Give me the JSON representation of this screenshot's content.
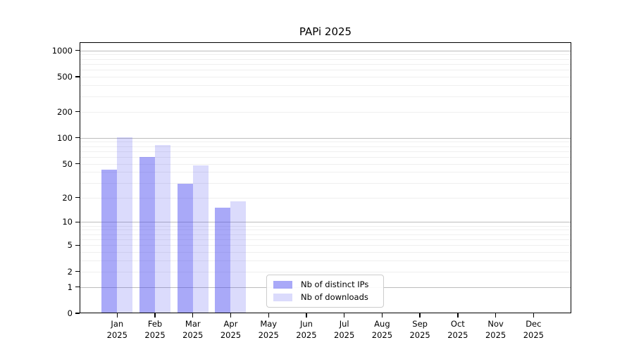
{
  "chart_data": {
    "type": "bar",
    "title": "PAPi 2025",
    "categories": [
      "Jan 2025",
      "Feb 2025",
      "Mar 2025",
      "Apr 2025",
      "May 2025",
      "Jun 2025",
      "Jul 2025",
      "Aug 2025",
      "Sep 2025",
      "Oct 2025",
      "Nov 2025",
      "Dec 2025"
    ],
    "series": [
      {
        "name": "Nb of distinct IPs",
        "color": "#4040F073",
        "values": [
          43,
          60,
          29,
          15,
          0,
          0,
          0,
          0,
          0,
          0,
          0,
          0
        ]
      },
      {
        "name": "Nb of downloads",
        "color": "#4040F030",
        "values": [
          102,
          83,
          48,
          18,
          0,
          0,
          0,
          0,
          0,
          0,
          0,
          0
        ]
      }
    ],
    "xlabel": "",
    "ylabel": "",
    "yscale": "log1p",
    "yticks": [
      0,
      1,
      2,
      5,
      10,
      20,
      50,
      100,
      200,
      500,
      1000
    ],
    "ylim": [
      0,
      1245
    ],
    "grid": true,
    "legend_position": "lower center inside plot"
  },
  "colors": {
    "major_grid": "#bdbdbd",
    "minor_grid": "#efefef",
    "spine": "#000000",
    "text": "#000000",
    "legend_border": "#cccccc"
  }
}
